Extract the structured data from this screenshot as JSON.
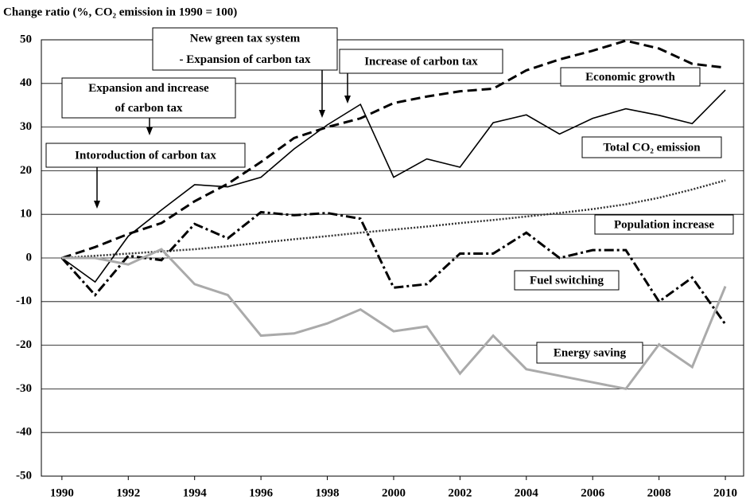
{
  "chart_data": {
    "type": "line",
    "title": "Change ratio (%, CO₂ emission in 1990 = 100)",
    "x": [
      1990,
      1991,
      1992,
      1993,
      1994,
      1995,
      1996,
      1997,
      1998,
      1999,
      2000,
      2001,
      2002,
      2003,
      2004,
      2005,
      2006,
      2007,
      2008,
      2009,
      2010
    ],
    "xlim": [
      1989.38,
      2010.55
    ],
    "xticks": [
      1990,
      1992,
      1994,
      1996,
      1998,
      2000,
      2002,
      2004,
      2006,
      2008,
      2010
    ],
    "ylim": [
      -50,
      50
    ],
    "yticks": [
      -50,
      -40,
      -30,
      -20,
      -10,
      0,
      10,
      20,
      30,
      40,
      50
    ],
    "grid": true,
    "series": [
      {
        "name": "Economic growth",
        "color": "#000000",
        "style": "dashed",
        "values": [
          0,
          2.5,
          5.5,
          8,
          13,
          17,
          22,
          27.5,
          30,
          32,
          35.5,
          37,
          38.2,
          38.8,
          43,
          45.5,
          47.5,
          49.8,
          48,
          44.5,
          43.6
        ]
      },
      {
        "name": "Total CO₂ emission",
        "color": "#000000",
        "style": "solid",
        "values": [
          0,
          -5.5,
          5,
          11,
          16.8,
          16.3,
          18.5,
          25,
          30.5,
          35.2,
          18.5,
          22.7,
          20.8,
          31,
          32.8,
          28.4,
          32,
          34.2,
          32.7,
          30.8,
          38.5
        ]
      },
      {
        "name": "Population increase",
        "color": "#333333",
        "style": "dotted",
        "values": [
          0,
          0.5,
          1,
          1.5,
          2,
          2.7,
          3.5,
          4.3,
          5,
          5.8,
          6.5,
          7.2,
          8,
          8.7,
          9.5,
          10.3,
          11.2,
          12.3,
          13.8,
          15.7,
          17.8
        ]
      },
      {
        "name": "Fuel switching",
        "color": "#000000",
        "style": "dashdot",
        "values": [
          0,
          -8.5,
          0.5,
          -0.5,
          7.8,
          4.5,
          10.5,
          9.8,
          10.3,
          9,
          -6.8,
          -6,
          1,
          1,
          5.8,
          0,
          1.8,
          1.8,
          -10,
          -4.5,
          -15.2
        ]
      },
      {
        "name": "Energy saving",
        "color": "#aaaaaa",
        "style": "solid",
        "values": [
          0,
          0,
          -1.5,
          2,
          -6,
          -8.5,
          -17.8,
          -17.3,
          -15,
          -11.8,
          -16.8,
          -15.7,
          -26.5,
          -17.8,
          -25.5,
          -27,
          -28.5,
          -30,
          -19.8,
          -25,
          -6.5
        ]
      }
    ],
    "annotations": [
      {
        "lines": [
          "Intoroduction of carbon tax"
        ]
      },
      {
        "lines": [
          "Expansion and increase",
          "of carbon tax"
        ]
      },
      {
        "lines": [
          "New green tax system",
          "- Expansion of carbon tax"
        ]
      },
      {
        "lines": [
          "Increase of carbon tax"
        ]
      }
    ]
  }
}
